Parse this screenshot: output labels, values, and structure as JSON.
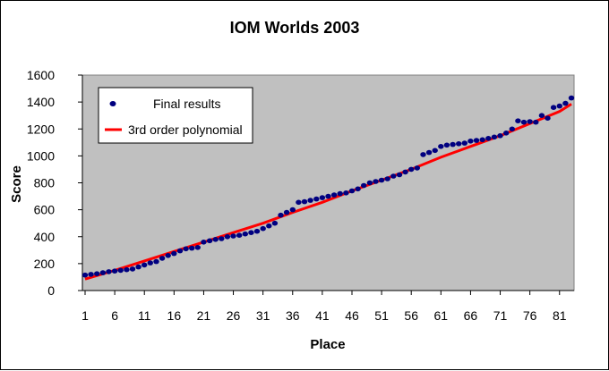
{
  "chart_data": {
    "type": "scatter",
    "title": "IOM Worlds 2003",
    "xlabel": "Place",
    "ylabel": "Score",
    "xlim": [
      1,
      83
    ],
    "ylim": [
      0,
      1600
    ],
    "x_ticks": [
      1,
      6,
      11,
      16,
      21,
      26,
      31,
      36,
      41,
      46,
      51,
      56,
      61,
      66,
      71,
      76,
      81
    ],
    "y_ticks": [
      0,
      200,
      400,
      600,
      800,
      1000,
      1200,
      1400,
      1600
    ],
    "grid": false,
    "legend_placement": "top-left",
    "plot_background": "#c0c0c0",
    "series": [
      {
        "name": "Final results",
        "kind": "markers",
        "color": "#000080",
        "x": [
          1,
          2,
          3,
          4,
          5,
          6,
          7,
          8,
          9,
          10,
          11,
          12,
          13,
          14,
          15,
          16,
          17,
          18,
          19,
          20,
          21,
          22,
          23,
          24,
          25,
          26,
          27,
          28,
          29,
          30,
          31,
          32,
          33,
          34,
          35,
          36,
          37,
          38,
          39,
          40,
          41,
          42,
          43,
          44,
          45,
          46,
          47,
          48,
          49,
          50,
          51,
          52,
          53,
          54,
          55,
          56,
          57,
          58,
          59,
          60,
          61,
          62,
          63,
          64,
          65,
          66,
          67,
          68,
          69,
          70,
          71,
          72,
          73,
          74,
          75,
          76,
          77,
          78,
          79,
          80,
          81,
          82,
          83
        ],
        "y": [
          115,
          120,
          125,
          132,
          140,
          145,
          150,
          155,
          160,
          175,
          190,
          205,
          215,
          240,
          260,
          275,
          295,
          310,
          315,
          320,
          360,
          370,
          380,
          385,
          400,
          405,
          410,
          420,
          430,
          440,
          460,
          480,
          500,
          560,
          580,
          600,
          655,
          660,
          670,
          680,
          690,
          700,
          710,
          720,
          725,
          740,
          755,
          780,
          800,
          810,
          820,
          830,
          850,
          860,
          880,
          900,
          910,
          1010,
          1025,
          1040,
          1070,
          1080,
          1085,
          1090,
          1095,
          1110,
          1115,
          1120,
          1130,
          1140,
          1150,
          1170,
          1200,
          1260,
          1250,
          1255,
          1250,
          1300,
          1280,
          1360,
          1370,
          1390,
          1430
        ]
      },
      {
        "name": "3rd order polynomial",
        "kind": "line",
        "color": "#ff0000",
        "x": [
          1,
          6,
          11,
          16,
          21,
          26,
          31,
          36,
          41,
          46,
          51,
          56,
          61,
          66,
          71,
          76,
          81,
          83
        ],
        "y": [
          85,
          150,
          220,
          290,
          360,
          430,
          500,
          580,
          655,
          740,
          820,
          900,
          990,
          1070,
          1150,
          1240,
          1330,
          1385
        ]
      }
    ]
  }
}
